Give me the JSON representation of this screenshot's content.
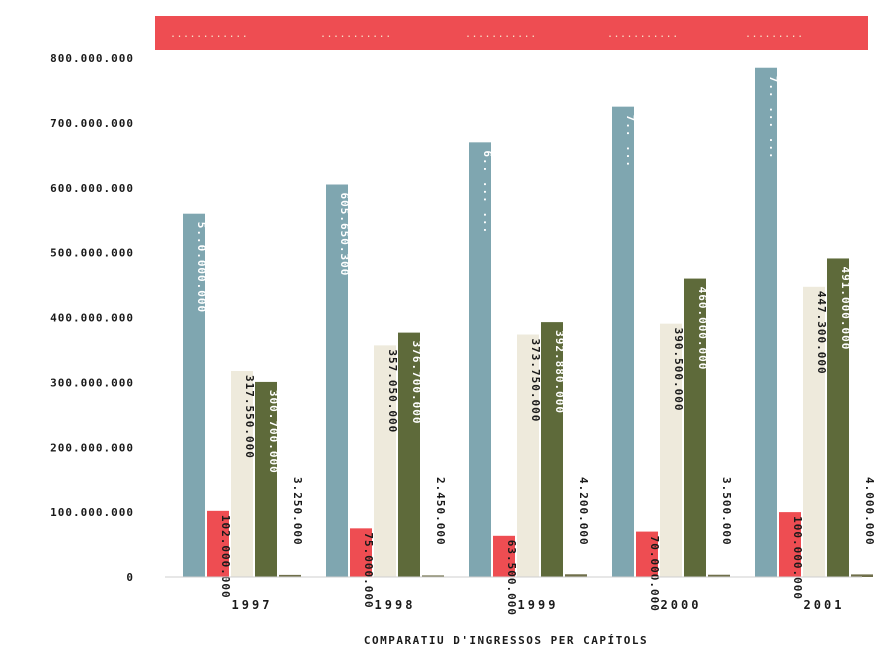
{
  "chart_data": {
    "type": "bar",
    "title": "",
    "caption": "COMPARATIU D'INGRESSOS PER CAPÍTOLS",
    "categories": [
      "1997",
      "1998",
      "1999",
      "2000",
      "2001"
    ],
    "ylim": [
      0,
      800000000
    ],
    "y_ticks": [
      "0",
      "100.000.000",
      "200.000.000",
      "300.000.000",
      "400.000.000",
      "500.000.000",
      "600.000.000",
      "700.000.000",
      "800.000.000"
    ],
    "grid": false,
    "legend_position": "top",
    "series": [
      {
        "color": "#7fa6b0",
        "values": [
          560000000,
          605000000,
          670000000,
          725000000,
          785000000
        ],
        "labels": [
          "5..0.000.000",
          "605.650.300",
          "6.. ... ...",
          "7.. ...",
          "7.. ... ..."
        ]
      },
      {
        "color": "#ee4d52",
        "values": [
          102000000,
          75000000,
          63500000,
          70000000,
          100000000
        ],
        "labels": [
          "102.000.000",
          "75.000.000",
          "63.500.000",
          "70.000.000",
          "100.000.000"
        ]
      },
      {
        "color": "#eeeadc",
        "values": [
          317550000,
          357050000,
          373750000,
          390500000,
          447300000
        ],
        "labels": [
          "317.550.000",
          "357.050.000",
          "373.750.000",
          "390.500.000",
          "447.300.000"
        ]
      },
      {
        "color": "#5e6a3a",
        "values": [
          300700000,
          376700000,
          392880000,
          460000000,
          491000000
        ],
        "labels": [
          "300.700.000",
          "376.700.000",
          "392.880.000",
          "460.000.000",
          "491.000.000"
        ]
      },
      {
        "color": "#6f6f4a",
        "values": [
          3250000,
          2450000,
          4200000,
          3500000,
          4000000
        ],
        "labels": [
          "3.250.000",
          "2.450.000",
          "4.200.000",
          "3.500.000",
          "4.000.000"
        ]
      }
    ]
  }
}
